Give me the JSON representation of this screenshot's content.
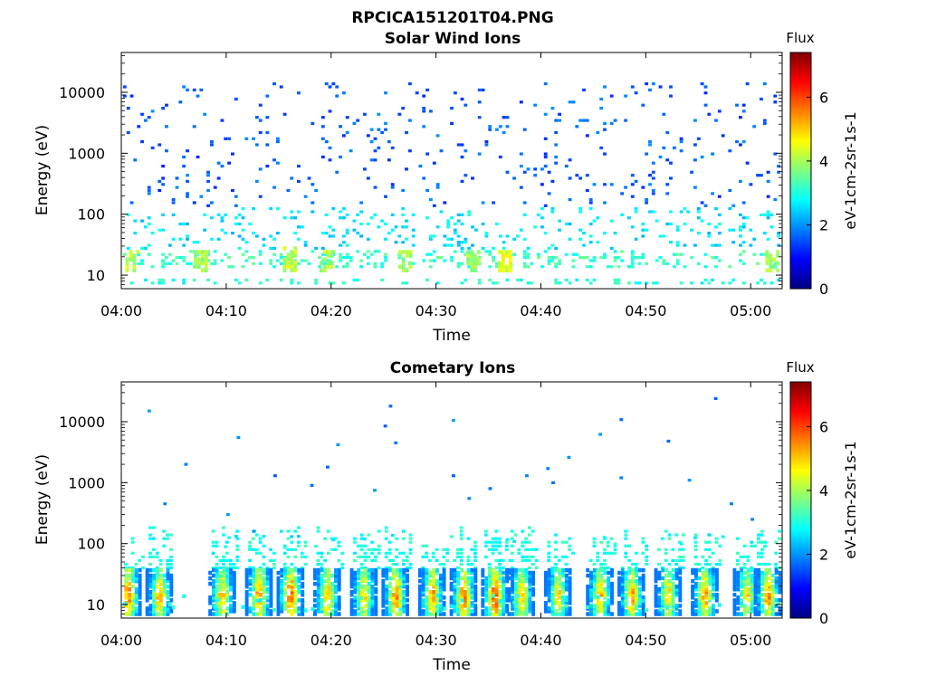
{
  "figure_title": "RPCICA151201T04.PNG",
  "colormap": [
    "#00007f",
    "#0000ff",
    "#007fff",
    "#00ffff",
    "#7fff7f",
    "#ffff00",
    "#ff7f00",
    "#ff0000",
    "#7f0000"
  ],
  "chart_data": [
    {
      "type": "heatmap",
      "title": "Solar Wind Ions",
      "xlabel": "Time",
      "ylabel": "Energy (eV)",
      "x_tick_labels": [
        "04:00",
        "04:10",
        "04:20",
        "04:30",
        "04:40",
        "04:50",
        "05:00"
      ],
      "x_ticks_min": [
        0,
        10,
        20,
        30,
        40,
        50,
        60
      ],
      "xlim_min": [
        0,
        63
      ],
      "y_scale": "log",
      "y_tick_labels": [
        "10",
        "100",
        "1000",
        "10000"
      ],
      "y_ticks": [
        10,
        100,
        1000,
        10000
      ],
      "ylim": [
        6,
        45000
      ],
      "colorbar": {
        "title": "Flux",
        "label": "eV-1cm-2sr-1s-1",
        "ticks": [
          "0",
          "2",
          "4",
          "6"
        ],
        "range": [
          0,
          7.4
        ]
      },
      "bands": [
        {
          "emin": 7,
          "emax": 9,
          "density": 0.6,
          "zmin": 2.6,
          "zmax": 3.4
        },
        {
          "emin": 13,
          "emax": 26,
          "density": 0.55,
          "zmin": 2.7,
          "zmax": 3.6
        },
        {
          "emin": 26,
          "emax": 130,
          "density": 0.3,
          "zmin": 2.2,
          "zmax": 3.0
        },
        {
          "emin": 130,
          "emax": 15000,
          "density": 0.12,
          "zmin": 1.2,
          "zmax": 2.0
        }
      ],
      "peaks": [
        {
          "t": 1,
          "emin": 12,
          "emax": 25,
          "z": 4.5
        },
        {
          "t": 7.5,
          "emin": 12,
          "emax": 25,
          "z": 4.4
        },
        {
          "t": 16,
          "emin": 12,
          "emax": 30,
          "z": 4.6
        },
        {
          "t": 19.5,
          "emin": 12,
          "emax": 25,
          "z": 4.4
        },
        {
          "t": 27,
          "emin": 12,
          "emax": 25,
          "z": 4.3
        },
        {
          "t": 33.5,
          "emin": 12,
          "emax": 25,
          "z": 4.4
        },
        {
          "t": 36.5,
          "emin": 12,
          "emax": 25,
          "z": 4.8
        },
        {
          "t": 62,
          "emin": 12,
          "emax": 25,
          "z": 4.3
        }
      ]
    },
    {
      "type": "heatmap",
      "title": "Cometary Ions",
      "xlabel": "Time",
      "ylabel": "Energy (eV)",
      "x_tick_labels": [
        "04:00",
        "04:10",
        "04:20",
        "04:30",
        "04:40",
        "04:50",
        "05:00"
      ],
      "x_ticks_min": [
        0,
        10,
        20,
        30,
        40,
        50,
        60
      ],
      "xlim_min": [
        0,
        63
      ],
      "y_scale": "log",
      "y_tick_labels": [
        "10",
        "100",
        "1000",
        "10000"
      ],
      "y_ticks": [
        10,
        100,
        1000,
        10000
      ],
      "ylim": [
        6,
        45000
      ],
      "colorbar": {
        "title": "Flux",
        "label": "eV-1cm-2sr-1s-1",
        "ticks": [
          "0",
          "2",
          "4",
          "6"
        ],
        "range": [
          0,
          7.4
        ]
      },
      "bursts_min": [
        0.5,
        3.5,
        9.5,
        13,
        16,
        19.5,
        23,
        26,
        29.5,
        32.5,
        35.5,
        38,
        41.5,
        45.5,
        48.5,
        52,
        55.5,
        59.5,
        61.5
      ],
      "burst_peak_z": [
        6.2,
        5.8,
        5.6,
        6.0,
        6.4,
        5.8,
        5.4,
        6.0,
        5.8,
        6.1,
        6.6,
        5.6,
        5.2,
        5.6,
        5.8,
        5.4,
        5.8,
        5.2,
        5.9
      ],
      "scatter": [
        [
          2.5,
          15000
        ],
        [
          6,
          2000
        ],
        [
          11,
          5500
        ],
        [
          14.5,
          1300
        ],
        [
          18,
          900
        ],
        [
          19.5,
          1800
        ],
        [
          20.5,
          4200
        ],
        [
          24,
          750
        ],
        [
          25,
          8500
        ],
        [
          25.5,
          18000
        ],
        [
          26,
          4500
        ],
        [
          31.5,
          10500
        ],
        [
          31.5,
          1300
        ],
        [
          33,
          550
        ],
        [
          35,
          800
        ],
        [
          38.5,
          1300
        ],
        [
          40.5,
          1700
        ],
        [
          41,
          1000
        ],
        [
          42.5,
          2600
        ],
        [
          45.5,
          6200
        ],
        [
          47.5,
          1200
        ],
        [
          47.5,
          10800
        ],
        [
          52,
          4800
        ],
        [
          54,
          1100
        ],
        [
          56.5,
          24000
        ],
        [
          58,
          450
        ],
        [
          60,
          250
        ],
        [
          4,
          450
        ],
        [
          10,
          300
        ],
        [
          12.5,
          160
        ]
      ]
    }
  ]
}
